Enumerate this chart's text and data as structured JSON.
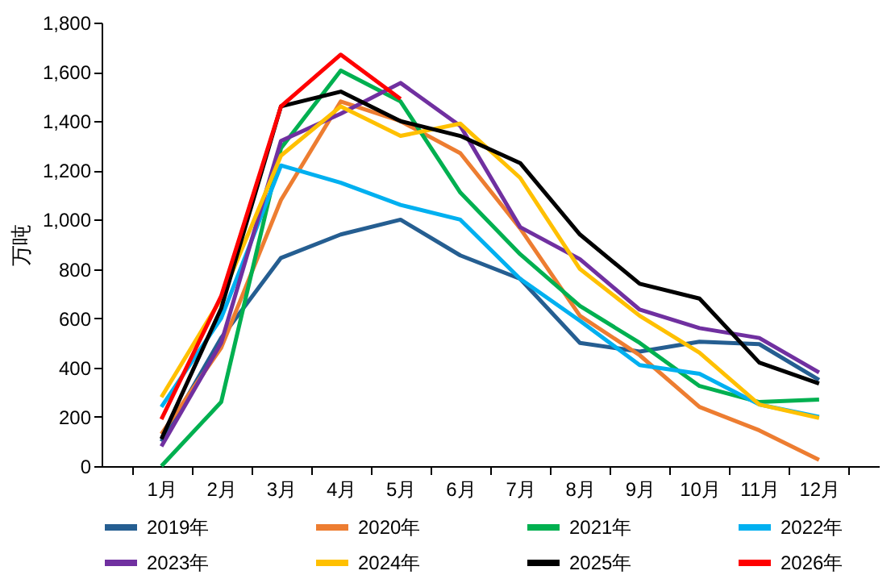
{
  "chart_data": {
    "type": "line",
    "ylabel": "万吨",
    "categories": [
      "1月",
      "2月",
      "3月",
      "4月",
      "5月",
      "6月",
      "7月",
      "8月",
      "9月",
      "10月",
      "11月",
      "12月"
    ],
    "ylim": [
      0,
      1800
    ],
    "yticks": [
      0,
      200,
      400,
      600,
      800,
      {
        "value": 1000,
        "label": "1,000"
      },
      {
        "value": 1200,
        "label": "1,200"
      },
      {
        "value": 1400,
        "label": "1,400"
      },
      {
        "value": 1600,
        "label": "1,600"
      },
      {
        "value": 1800,
        "label": "1,800"
      }
    ],
    "grid": false,
    "legend": "bottom",
    "marker": "none",
    "series": [
      {
        "name": "2019年",
        "color": "#255e91",
        "values": [
          100,
          520,
          845,
          940,
          1000,
          855,
          760,
          500,
          465,
          505,
          495,
          350
        ]
      },
      {
        "name": "2020年",
        "color": "#ed7d31",
        "values": [
          130,
          480,
          1080,
          1480,
          1400,
          1270,
          965,
          610,
          450,
          240,
          145,
          25
        ]
      },
      {
        "name": "2021年",
        "color": "#00b050",
        "values": [
          0,
          260,
          1290,
          1605,
          1480,
          1110,
          860,
          650,
          500,
          325,
          260,
          270
        ]
      },
      {
        "name": "2022年",
        "color": "#00b0f0",
        "values": [
          240,
          600,
          1220,
          1150,
          1060,
          1000,
          760,
          590,
          410,
          375,
          250,
          200
        ]
      },
      {
        "name": "2023年",
        "color": "#7030a0",
        "values": [
          80,
          500,
          1320,
          1430,
          1555,
          1380,
          970,
          840,
          635,
          560,
          520,
          380
        ]
      },
      {
        "name": "2024年",
        "color": "#ffc000",
        "values": [
          280,
          680,
          1260,
          1460,
          1340,
          1390,
          1170,
          800,
          610,
          460,
          250,
          195
        ]
      },
      {
        "name": "2025年",
        "color": "#000000",
        "values": [
          110,
          640,
          1460,
          1520,
          1400,
          1340,
          1230,
          940,
          740,
          680,
          420,
          335
        ]
      },
      {
        "name": "2026年",
        "color": "#ff0000",
        "values": [
          190,
          690,
          1460,
          1670,
          1490,
          null,
          null,
          null,
          null,
          null,
          null,
          null
        ]
      }
    ]
  }
}
